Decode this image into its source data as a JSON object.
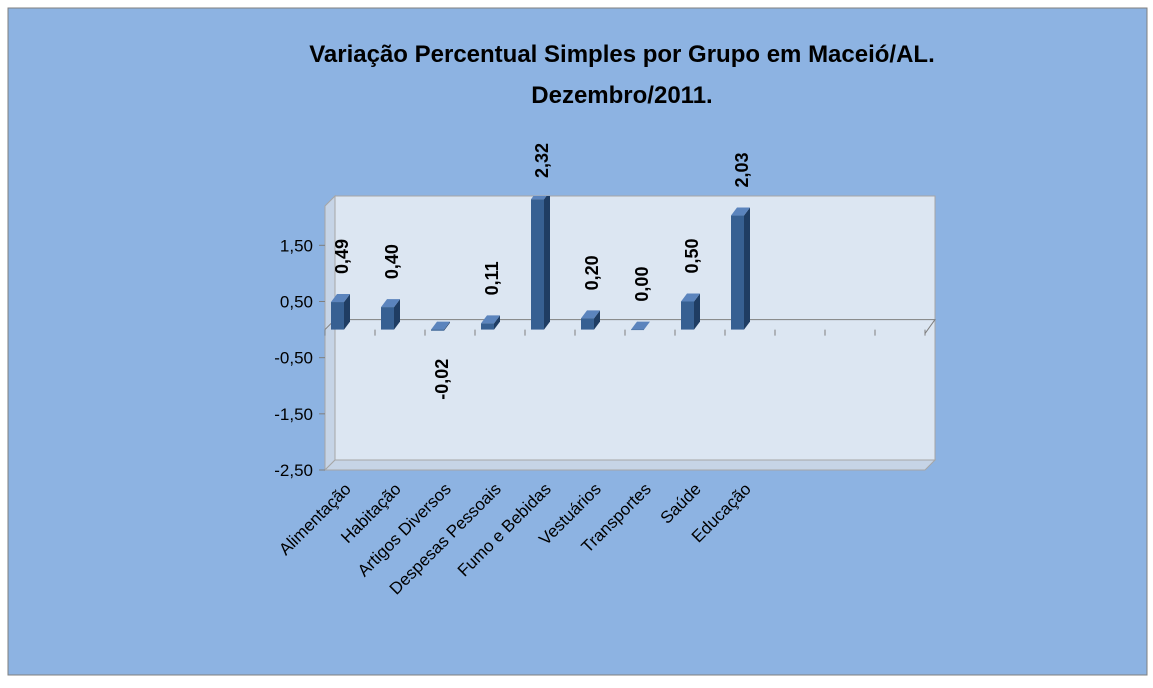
{
  "chart_data": {
    "type": "bar3d",
    "title": [
      "Variação Percentual Simples por Grupo em Maceió/AL.",
      "Dezembro/2011."
    ],
    "categories": [
      "Alimentação",
      "Habitação",
      "Artigos Diversos",
      "Despesas Pessoais",
      "Fumo e Bebidas",
      "Vestuários",
      "Transportes",
      "Saúde",
      "Educação",
      null,
      null,
      null
    ],
    "values": [
      0.49,
      0.4,
      -0.02,
      0.11,
      2.32,
      0.2,
      0.0,
      0.5,
      2.03,
      null,
      null,
      null
    ],
    "value_labels": [
      "0,49",
      "0,40",
      "-0,02",
      "0,11",
      "2,32",
      "0,20",
      "0,00",
      "0,50",
      "2,03",
      null,
      null,
      null
    ],
    "color": "#376092",
    "ylim": [
      -2.5,
      2.2
    ],
    "yticks": [
      {
        "value": -2.5,
        "label": "-2,50"
      },
      {
        "value": -1.5,
        "label": "-1,50"
      },
      {
        "value": -0.5,
        "label": "-0,50"
      },
      {
        "value": 0.5,
        "label": "0,50"
      },
      {
        "value": 1.5,
        "label": "1,50"
      }
    ]
  }
}
